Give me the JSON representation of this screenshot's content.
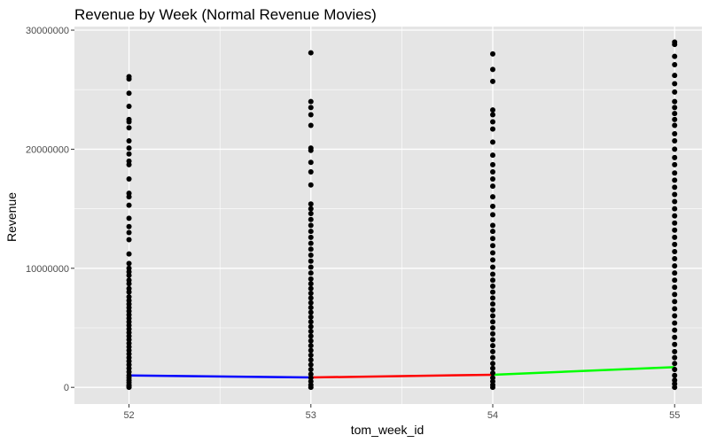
{
  "chart_data": {
    "type": "scatter",
    "title": "Revenue by Week (Normal Revenue Movies)",
    "xlabel": "tom_week_id",
    "ylabel": "Revenue",
    "xlim": [
      51.7,
      55.15
    ],
    "ylim": [
      -1400000,
      30300000
    ],
    "xticks": [
      52,
      53,
      54,
      55
    ],
    "yticks": [
      0,
      10000000,
      20000000,
      30000000
    ],
    "grid": true,
    "colors": {
      "panel": "#e5e5e5",
      "grid": "#ffffff",
      "point": "#000000"
    },
    "series": [
      {
        "x": 52,
        "values": [
          26100000,
          25900000,
          24700000,
          23600000,
          22500000,
          22300000,
          21800000,
          20700000,
          20100000,
          19600000,
          19000000,
          18700000,
          17500000,
          16300000,
          16000000,
          15300000,
          14200000,
          13500000,
          13000000,
          12400000,
          11200000,
          10400000,
          10000000,
          9700000,
          9400000,
          9000000,
          8700000,
          8300000,
          8000000,
          7600000,
          7300000,
          7000000,
          6700000,
          6400000,
          6100000,
          5800000,
          5500000,
          5200000,
          4900000,
          4600000,
          4300000,
          4000000,
          3700000,
          3400000,
          3100000,
          2800000,
          2500000,
          2200000,
          1900000,
          1600000,
          1300000,
          1000000,
          800000,
          600000,
          400000,
          200000,
          100000,
          0
        ]
      },
      {
        "x": 53,
        "values": [
          28100000,
          24000000,
          23500000,
          22900000,
          22000000,
          20100000,
          19900000,
          18900000,
          18100000,
          17000000,
          15400000,
          15000000,
          14600000,
          14100000,
          13600000,
          13100000,
          12600000,
          12100000,
          11600000,
          11100000,
          10600000,
          10100000,
          9600000,
          9100000,
          8700000,
          8300000,
          7900000,
          7500000,
          7100000,
          6700000,
          6300000,
          5900000,
          5500000,
          5100000,
          4700000,
          4300000,
          3900000,
          3500000,
          3100000,
          2700000,
          2300000,
          1900000,
          1500000,
          1100000,
          800000,
          500000,
          200000,
          0
        ]
      },
      {
        "x": 54,
        "values": [
          28000000,
          26700000,
          25700000,
          23300000,
          22900000,
          22300000,
          21700000,
          20600000,
          19500000,
          18700000,
          18100000,
          17500000,
          16900000,
          16000000,
          15200000,
          14500000,
          13600000,
          13100000,
          12500000,
          11900000,
          11300000,
          10700000,
          10100000,
          9500000,
          9000000,
          8500000,
          8000000,
          7500000,
          7000000,
          6500000,
          6000000,
          5500000,
          5000000,
          4500000,
          4000000,
          3500000,
          3000000,
          2500000,
          2000000,
          1600000,
          1200000,
          800000,
          500000,
          200000,
          0
        ]
      },
      {
        "x": 55,
        "values": [
          29000000,
          28800000,
          27800000,
          27100000,
          26200000,
          25500000,
          24800000,
          24000000,
          23500000,
          23000000,
          22500000,
          22000000,
          21300000,
          20700000,
          20000000,
          19300000,
          18700000,
          18000000,
          17400000,
          16800000,
          16200000,
          15600000,
          15000000,
          14400000,
          13800000,
          13200000,
          12600000,
          12000000,
          11400000,
          10800000,
          10200000,
          9600000,
          9000000,
          8400000,
          7800000,
          7200000,
          6600000,
          6000000,
          5400000,
          4800000,
          4200000,
          3600000,
          3000000,
          2500000,
          2000000,
          1500000,
          1000000,
          600000,
          300000,
          0
        ]
      }
    ],
    "segments": [
      {
        "x": [
          52,
          53
        ],
        "y": [
          1000000,
          830000
        ],
        "color": "#0000ff"
      },
      {
        "x": [
          53,
          54
        ],
        "y": [
          830000,
          1060000
        ],
        "color": "#ff0000"
      },
      {
        "x": [
          54,
          55
        ],
        "y": [
          1060000,
          1700000
        ],
        "color": "#00ff00"
      }
    ]
  }
}
